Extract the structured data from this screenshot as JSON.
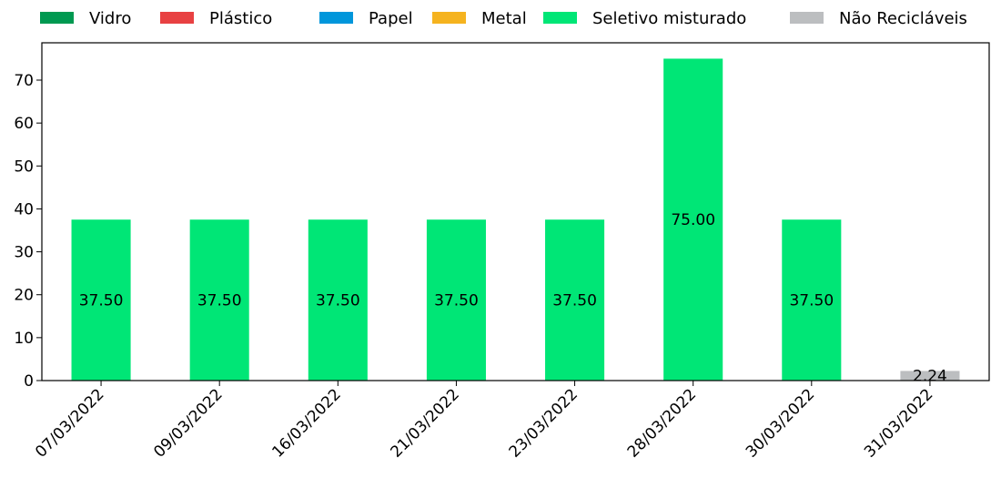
{
  "chart_data": {
    "type": "bar",
    "stacked": true,
    "categories": [
      "07/03/2022",
      "09/03/2022",
      "16/03/2022",
      "21/03/2022",
      "23/03/2022",
      "28/03/2022",
      "30/03/2022",
      "31/03/2022"
    ],
    "series": [
      {
        "name": "Vidro",
        "color": "#009951",
        "values": [
          0,
          0,
          0,
          0,
          0,
          0,
          0,
          0
        ]
      },
      {
        "name": "Plástico",
        "color": "#e84142",
        "values": [
          0,
          0,
          0,
          0,
          0,
          0,
          0,
          0
        ]
      },
      {
        "name": "Papel",
        "color": "#0096db",
        "values": [
          0,
          0,
          0,
          0,
          0,
          0,
          0,
          0
        ]
      },
      {
        "name": "Metal",
        "color": "#f5b31f",
        "values": [
          0,
          0,
          0,
          0,
          0,
          0,
          0,
          0
        ]
      },
      {
        "name": "Seletivo misturado",
        "color": "#00e676",
        "values": [
          37.5,
          37.5,
          37.5,
          37.5,
          37.5,
          75.0,
          37.5,
          0
        ]
      },
      {
        "name": "Não Recicláveis",
        "color": "#bcbec0",
        "values": [
          0,
          0,
          0,
          0,
          0,
          0,
          0,
          2.24
        ]
      }
    ],
    "data_labels": [
      "37.50",
      "37.50",
      "37.50",
      "37.50",
      "37.50",
      "75.00",
      "37.50",
      "2.24"
    ],
    "yticks": [
      0,
      10,
      20,
      30,
      40,
      50,
      60,
      70
    ],
    "ylim": [
      0,
      78.7
    ],
    "legend_position": "top",
    "grid": false,
    "title": "",
    "xlabel": "",
    "ylabel": ""
  }
}
